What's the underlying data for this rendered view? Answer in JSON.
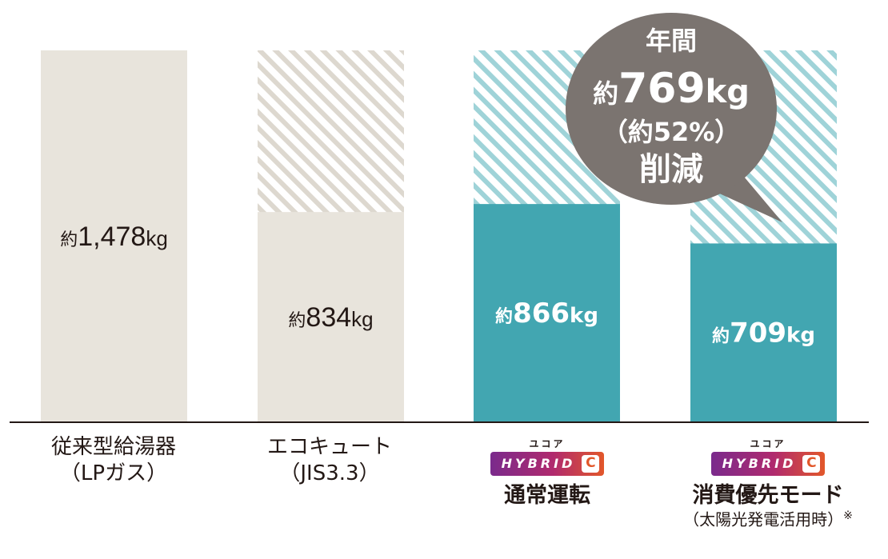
{
  "chart_data": {
    "type": "bar",
    "categories": [
      "従来型給湯器（LPガス）",
      "エコキュート（JIS3.3）",
      "通常運転",
      "消費優先モード（太陽光発電活用時）※"
    ],
    "values": [
      1478,
      834,
      866,
      709
    ],
    "baseline_reference": 1478,
    "value_labels": [
      {
        "prefix": "約",
        "number": "1,478",
        "unit": "kg"
      },
      {
        "prefix": "約",
        "number": "834",
        "unit": "kg"
      },
      {
        "prefix": "約",
        "number": "866",
        "unit": "kg"
      },
      {
        "prefix": "約",
        "number": "709",
        "unit": "kg"
      }
    ],
    "bar_styles": [
      "beige",
      "beige",
      "teal",
      "teal"
    ],
    "reduction_callout": {
      "line1": "年間",
      "prefix": "約",
      "number": "769",
      "unit": "kg",
      "line3": "（約52%）",
      "line4": "削減"
    },
    "ylim": [
      0,
      1478
    ]
  },
  "labels": {
    "cat0": {
      "line1": "従来型給湯器",
      "line2": "（LPガス）"
    },
    "cat1": {
      "line1": "エコキュート",
      "line2": "（JIS3.3）"
    },
    "cat2": {
      "brand_kana": "ユコア",
      "brand_text": "HYBRID",
      "brand_c": "C",
      "line1": "通常運転"
    },
    "cat3": {
      "brand_kana": "ユコア",
      "brand_text": "HYBRID",
      "brand_c": "C",
      "line1": "消費優先モード",
      "line2": "（太陽光発電活用時）",
      "note_mark": "※"
    }
  },
  "colors": {
    "beige": "#e8e4dc",
    "beige_hatch": "#ddd8cf",
    "teal": "#42a6b1",
    "teal_hatch": "#9fd3d8",
    "callout": "#7b7470",
    "axis": "#231815",
    "value_text_dark": "#231815",
    "value_text_light": "#ffffff"
  }
}
